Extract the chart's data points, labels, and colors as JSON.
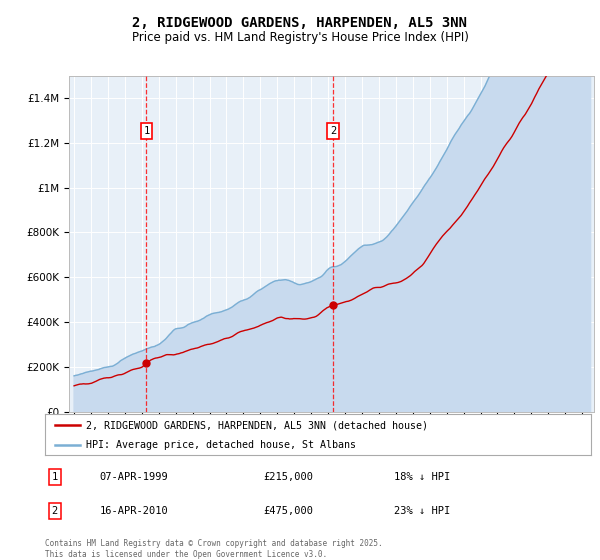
{
  "title": "2, RIDGEWOOD GARDENS, HARPENDEN, AL5 3NN",
  "subtitle": "Price paid vs. HM Land Registry's House Price Index (HPI)",
  "sale1_date": "07-APR-1999",
  "sale1_price": 215000,
  "sale1_label": "18% ↓ HPI",
  "sale2_date": "16-APR-2010",
  "sale2_price": 475000,
  "sale2_label": "23% ↓ HPI",
  "sale1_x": 1999.27,
  "sale2_x": 2010.29,
  "legend_line1": "2, RIDGEWOOD GARDENS, HARPENDEN, AL5 3NN (detached house)",
  "legend_line2": "HPI: Average price, detached house, St Albans",
  "footer": "Contains HM Land Registry data © Crown copyright and database right 2025.\nThis data is licensed under the Open Government Licence v3.0.",
  "hpi_color": "#7bafd4",
  "hpi_fill_color": "#c8daee",
  "price_color": "#cc0000",
  "plot_bg_color": "#e8f0f8",
  "ylim_max": 1500000,
  "ylim_min": 0,
  "xlim_min": 1994.7,
  "xlim_max": 2025.7,
  "title_fontsize": 10,
  "subtitle_fontsize": 8.5
}
